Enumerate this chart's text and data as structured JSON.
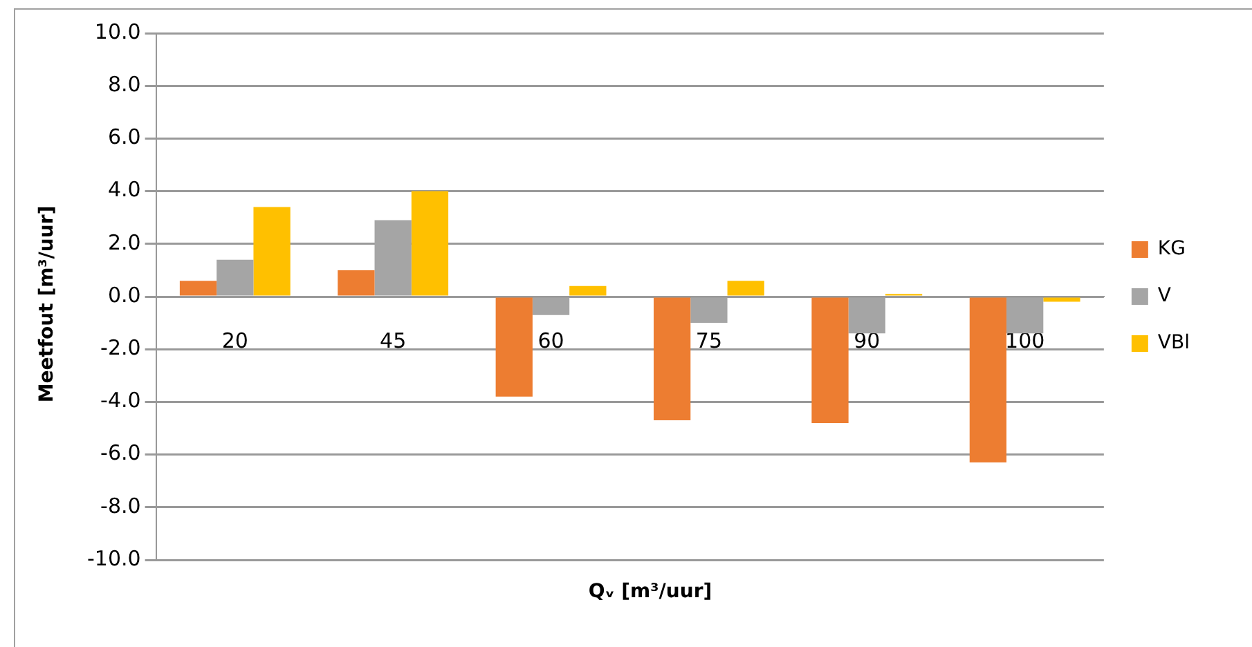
{
  "chart_data": {
    "type": "bar",
    "xlabel": "Qᵥ [m³/uur]",
    "ylabel": "Meetfout [m³/uur]",
    "categories": [
      "20",
      "45",
      "60",
      "75",
      "90",
      "100"
    ],
    "series": [
      {
        "name": "KG",
        "color": "#ed7d31",
        "values": [
          0.6,
          1.0,
          -3.8,
          -4.7,
          -4.8,
          -6.3
        ]
      },
      {
        "name": "V",
        "color": "#a5a5a5",
        "values": [
          1.4,
          2.9,
          -0.7,
          -1.0,
          -1.4,
          -1.4
        ]
      },
      {
        "name": "VBl",
        "color": "#ffc000",
        "values": [
          3.4,
          4.0,
          0.4,
          0.6,
          0.1,
          -0.2
        ]
      }
    ],
    "ylim": [
      -10,
      10
    ],
    "yticks": [
      {
        "value": -10,
        "label": "-10.0"
      },
      {
        "value": -8,
        "label": "-8.0"
      },
      {
        "value": -6,
        "label": "-6.0"
      },
      {
        "value": -4,
        "label": "-4.0"
      },
      {
        "value": -2,
        "label": "-2.0"
      },
      {
        "value": 0,
        "label": "0.0"
      },
      {
        "value": 2,
        "label": "2.0"
      },
      {
        "value": 4,
        "label": "4.0"
      },
      {
        "value": 6,
        "label": "6.0"
      },
      {
        "value": 8,
        "label": "8.0"
      },
      {
        "value": 10,
        "label": "10.0"
      }
    ],
    "grid": "y",
    "legend": "right"
  }
}
